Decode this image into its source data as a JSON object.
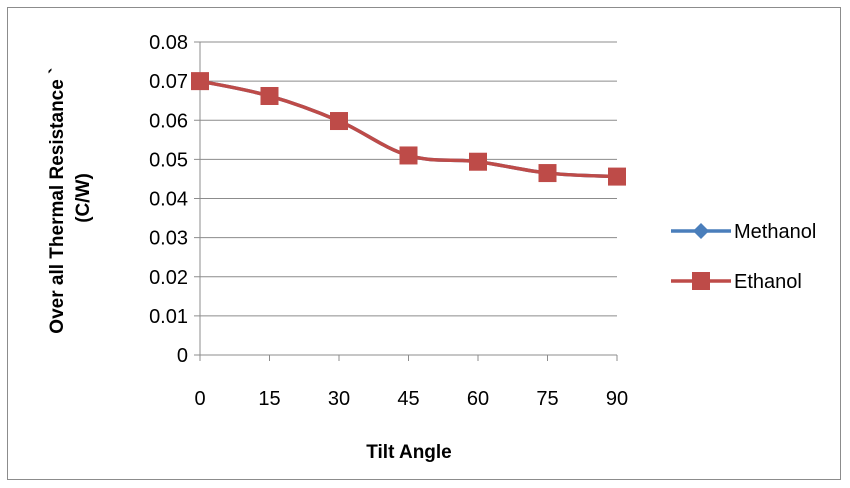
{
  "chart_data": {
    "type": "line",
    "title": "",
    "xlabel": "Tilt Angle",
    "ylabel_line1": "Over all Thermal Resistance `",
    "ylabel_line2": "(C/W)",
    "categories": [
      "0",
      "15",
      "30",
      "45",
      "60",
      "75",
      "90"
    ],
    "x": [
      0,
      15,
      30,
      45,
      60,
      75,
      90
    ],
    "ylim": [
      0,
      0.08
    ],
    "yticks": [
      "0",
      "0.01",
      "0.02",
      "0.03",
      "0.04",
      "0.05",
      "0.06",
      "0.07",
      "0.08"
    ],
    "ytick_values": [
      0,
      0.01,
      0.02,
      0.03,
      0.04,
      0.05,
      0.06,
      0.07,
      0.08
    ],
    "grid": "horizontal",
    "legend_position": "right",
    "series": [
      {
        "name": "Methanol",
        "color": "#4a7ebb",
        "marker": "diamond",
        "values": [
          0.07,
          0.0662,
          0.0598,
          0.051,
          0.0494,
          0.0465,
          0.0456
        ]
      },
      {
        "name": "Ethanol",
        "color": "#be4b48",
        "marker": "square",
        "values": [
          0.07,
          0.0662,
          0.0598,
          0.051,
          0.0494,
          0.0465,
          0.0456
        ]
      }
    ]
  }
}
